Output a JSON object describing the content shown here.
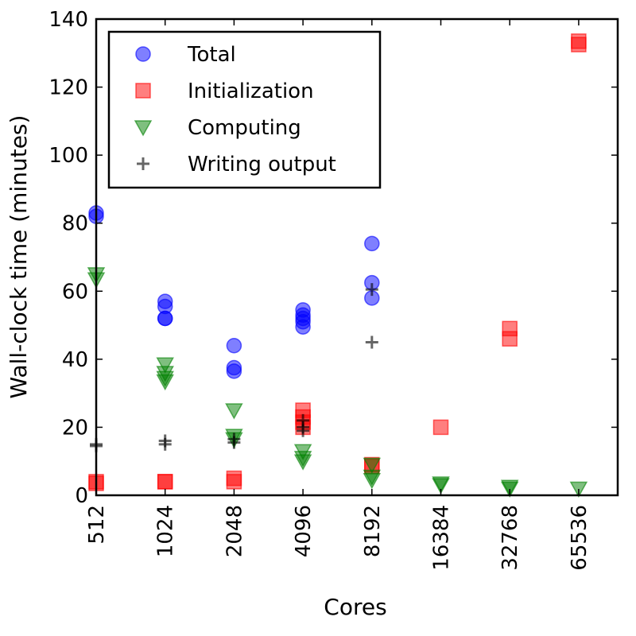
{
  "chart_data": {
    "type": "scatter",
    "xlabel": "Cores",
    "ylabel": "Wall-clock time (minutes)",
    "x_categories": [
      "512",
      "1024",
      "2048",
      "4096",
      "8192",
      "16384",
      "32768",
      "65536"
    ],
    "ylim": [
      0,
      140
    ],
    "yticks": [
      0,
      20,
      40,
      60,
      80,
      100,
      120,
      140
    ],
    "x_scale": "log2",
    "legend_position": "top-left",
    "series": [
      {
        "name": "Total",
        "marker": "circle",
        "color": "#0000ff",
        "points": [
          {
            "x": "512",
            "y": 83
          },
          {
            "x": "512",
            "y": 82
          },
          {
            "x": "1024",
            "y": 57
          },
          {
            "x": "1024",
            "y": 55.5
          },
          {
            "x": "1024",
            "y": 52
          },
          {
            "x": "1024",
            "y": 52
          },
          {
            "x": "2048",
            "y": 44
          },
          {
            "x": "2048",
            "y": 37.5
          },
          {
            "x": "2048",
            "y": 36.5
          },
          {
            "x": "4096",
            "y": 54.5
          },
          {
            "x": "4096",
            "y": 53
          },
          {
            "x": "4096",
            "y": 52
          },
          {
            "x": "4096",
            "y": 51
          },
          {
            "x": "4096",
            "y": 49.5
          },
          {
            "x": "8192",
            "y": 74
          },
          {
            "x": "8192",
            "y": 62.5
          },
          {
            "x": "8192",
            "y": 58
          }
        ]
      },
      {
        "name": "Initialization",
        "marker": "square",
        "color": "#ff0000",
        "points": [
          {
            "x": "512",
            "y": 4
          },
          {
            "x": "512",
            "y": 3.5
          },
          {
            "x": "1024",
            "y": 4
          },
          {
            "x": "1024",
            "y": 4
          },
          {
            "x": "2048",
            "y": 5
          },
          {
            "x": "2048",
            "y": 4
          },
          {
            "x": "4096",
            "y": 25
          },
          {
            "x": "4096",
            "y": 23
          },
          {
            "x": "4096",
            "y": 21.5
          },
          {
            "x": "4096",
            "y": 20
          },
          {
            "x": "8192",
            "y": 9
          },
          {
            "x": "8192",
            "y": 8.5
          },
          {
            "x": "16384",
            "y": 20
          },
          {
            "x": "32768",
            "y": 49
          },
          {
            "x": "32768",
            "y": 46
          },
          {
            "x": "65536",
            "y": 133.5
          },
          {
            "x": "65536",
            "y": 132.5
          }
        ]
      },
      {
        "name": "Computing",
        "marker": "triangle-down",
        "color": "#008000",
        "points": [
          {
            "x": "512",
            "y": 65
          },
          {
            "x": "512",
            "y": 63.5
          },
          {
            "x": "1024",
            "y": 38.5
          },
          {
            "x": "1024",
            "y": 36
          },
          {
            "x": "1024",
            "y": 34.5
          },
          {
            "x": "1024",
            "y": 33.5
          },
          {
            "x": "2048",
            "y": 25
          },
          {
            "x": "2048",
            "y": 17.5
          },
          {
            "x": "2048",
            "y": 16.5
          },
          {
            "x": "4096",
            "y": 13
          },
          {
            "x": "4096",
            "y": 11
          },
          {
            "x": "4096",
            "y": 10
          },
          {
            "x": "8192",
            "y": 9
          },
          {
            "x": "8192",
            "y": 5.5
          },
          {
            "x": "8192",
            "y": 4.5
          },
          {
            "x": "16384",
            "y": 3.5
          },
          {
            "x": "16384",
            "y": 3
          },
          {
            "x": "32768",
            "y": 2.5
          },
          {
            "x": "32768",
            "y": 2
          },
          {
            "x": "65536",
            "y": 2
          }
        ]
      },
      {
        "name": "Writing output",
        "marker": "plus",
        "color": "#000000",
        "points": [
          {
            "x": "512",
            "y": 15
          },
          {
            "x": "512",
            "y": 14.5
          },
          {
            "x": "1024",
            "y": 16
          },
          {
            "x": "1024",
            "y": 15
          },
          {
            "x": "2048",
            "y": 16.5
          },
          {
            "x": "2048",
            "y": 15.5
          },
          {
            "x": "4096",
            "y": 22
          },
          {
            "x": "4096",
            "y": 20
          },
          {
            "x": "4096",
            "y": 19
          },
          {
            "x": "8192",
            "y": 60.5
          },
          {
            "x": "8192",
            "y": 45
          }
        ]
      }
    ]
  }
}
